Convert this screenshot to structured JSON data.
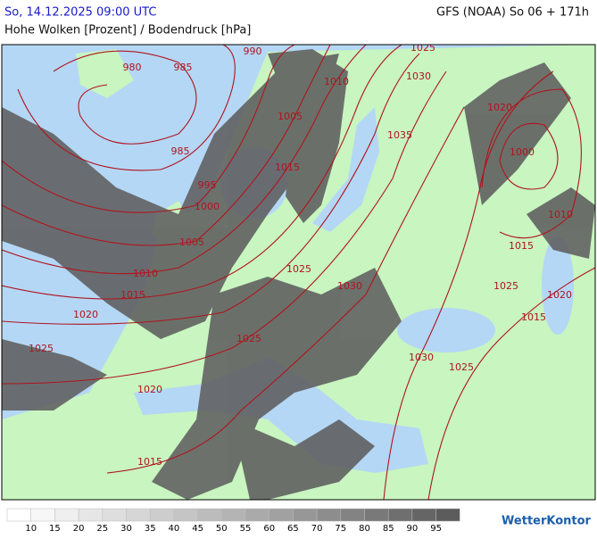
{
  "header": {
    "datetime": "So, 14.12.2025 09:00 UTC",
    "model": "GFS (NOAA) So 06 + 171h",
    "title": "Hohe Wolken [Prozent] / Bodendruck [hPa]"
  },
  "isobar_labels": [
    990,
    980,
    985,
    1025,
    1030,
    1010,
    1020,
    1005,
    1035,
    985,
    1000,
    1015,
    995,
    1000,
    1010,
    1005,
    1015,
    1010,
    1025,
    1030,
    1025,
    1020,
    1015,
    1020,
    1015,
    1025,
    1025,
    1030,
    1025,
    1020,
    1015
  ],
  "legend": {
    "levels": [
      10,
      15,
      20,
      25,
      30,
      35,
      40,
      45,
      50,
      55,
      60,
      65,
      70,
      75,
      80,
      85,
      90,
      95
    ],
    "colors": [
      "#ffffff",
      "#f7f7f7",
      "#efefef",
      "#e6e6e6",
      "#dedede",
      "#d6d6d6",
      "#cdcdcd",
      "#c5c5c5",
      "#bcbcbc",
      "#b4b4b4",
      "#aaaaaa",
      "#a1a1a1",
      "#979797",
      "#8d8d8d",
      "#838383",
      "#797979",
      "#6f6f6f",
      "#656565",
      "#5c5c5c"
    ]
  },
  "logo": "WetterKontor"
}
